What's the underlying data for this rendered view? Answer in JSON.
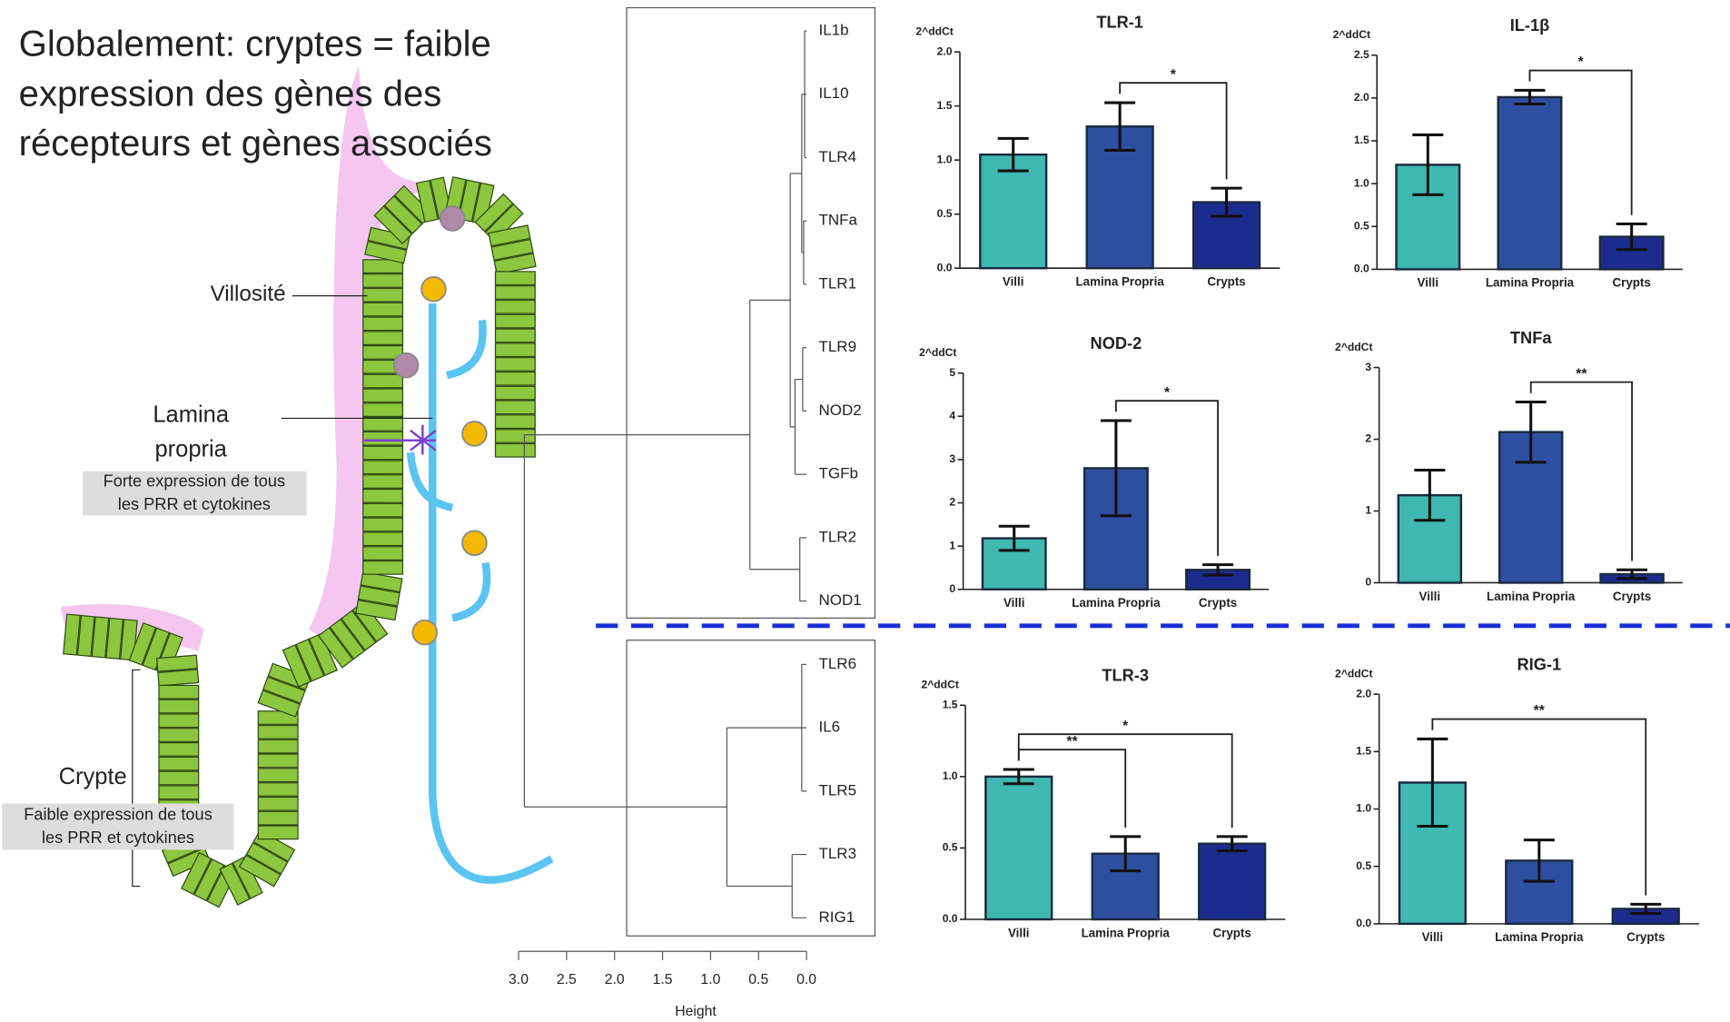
{
  "headline": [
    "Globalement: cryptes = faible",
    "expression des gènes  des",
    "récepteurs et gènes associés"
  ],
  "diagram": {
    "villus": "Villosité",
    "lamina": [
      "Lamina",
      "propria"
    ],
    "lamina_note": [
      "Forte expression de tous",
      "les PRR et cytokines"
    ],
    "crypt": "Crypte",
    "crypt_note": [
      "Faible expression de tous",
      "les PRR et cytokines"
    ]
  },
  "dendrogram": {
    "xlabel": "Height",
    "xlim": [
      3.0,
      0.0
    ],
    "xticks": [
      {
        "value": 3.0,
        "label": "3.0"
      },
      2.5,
      {
        "value": 2.0,
        "label": "2.0"
      },
      1.5,
      {
        "value": 1.0,
        "label": "1.0"
      },
      0.5,
      {
        "value": 0.0,
        "label": "0.0"
      }
    ],
    "tree": {
      "height": 2.94,
      "children": [
        {
          "height": 0.59,
          "children": [
            {
              "height": 0.17,
              "children": [
                {
                  "height": 0.05,
                  "children": [
                    {
                      "height": 0.02,
                      "children": [
                        "IL1b",
                        "IL10",
                        "TLR4"
                      ]
                    },
                    {
                      "height": 0.03,
                      "children": [
                        "TNFa",
                        "TLR1"
                      ]
                    }
                  ]
                },
                {
                  "height": 0.12,
                  "children": [
                    {
                      "height": 0.04,
                      "children": [
                        "TLR9",
                        "NOD2"
                      ]
                    },
                    "TGFb"
                  ]
                }
              ]
            },
            {
              "height": 0.07,
              "children": [
                "TLR2",
                "NOD1"
              ]
            }
          ]
        },
        {
          "height": 0.83,
          "children": [
            {
              "height": 0.05,
              "children": [
                "TLR6",
                "IL6",
                "TLR5"
              ]
            },
            {
              "height": 0.15,
              "children": [
                "TLR3",
                "RIG1"
              ]
            }
          ]
        }
      ]
    }
  },
  "chart_data": [
    {
      "type": "bar",
      "title": "TLR-1",
      "ylabel": "2^ddCt",
      "categories": [
        "Villi",
        "Lamina Propria",
        "Crypts"
      ],
      "values": [
        1.05,
        1.31,
        0.61
      ],
      "errors": [
        0.15,
        0.22,
        0.13
      ],
      "colors": [
        "#3fb8b0",
        "#2e4fa0",
        "#1c2c8e"
      ],
      "ylim": [
        0,
        2.0
      ],
      "yticks": [
        {
          "value": 0,
          "label": "0.0"
        },
        0.5,
        {
          "value": 1,
          "label": "1.0"
        },
        1.5,
        {
          "value": 2,
          "label": "2.0"
        }
      ],
      "comparisons": [
        {
          "label": "*",
          "groups": [
            "Lamina Propria",
            "Crypts"
          ]
        }
      ]
    },
    {
      "type": "bar",
      "title": "IL-1β",
      "ylabel": "2^ddCt",
      "categories": [
        "Villi",
        "Lamina Propria",
        "Crypts"
      ],
      "values": [
        1.22,
        2.01,
        0.38
      ],
      "errors": [
        0.35,
        0.08,
        0.15
      ],
      "colors": [
        "#3fb8b0",
        "#2e4fa0",
        "#1c2c8e"
      ],
      "ylim": [
        0,
        2.5
      ],
      "yticks": [
        {
          "value": 0,
          "label": "0.0"
        },
        0.5,
        {
          "value": 1,
          "label": "1.0"
        },
        1.5,
        {
          "value": 2,
          "label": "2.0"
        },
        2.5
      ],
      "comparisons": [
        {
          "label": "*",
          "groups": [
            "Lamina Propria",
            "Crypts"
          ]
        }
      ]
    },
    {
      "type": "bar",
      "title": "NOD-2",
      "ylabel": "2^ddCt",
      "categories": [
        "Villi",
        "Lamina Propria",
        "Crypts"
      ],
      "values": [
        1.18,
        2.8,
        0.45
      ],
      "errors": [
        0.28,
        1.1,
        0.12
      ],
      "colors": [
        "#3fb8b0",
        "#2e4fa0",
        "#1c2c8e"
      ],
      "ylim": [
        0,
        5
      ],
      "yticks": [
        0,
        1,
        2,
        3,
        4,
        5
      ],
      "comparisons": [
        {
          "label": "*",
          "groups": [
            "Lamina Propria",
            "Crypts"
          ]
        }
      ]
    },
    {
      "type": "bar",
      "title": "TNFa",
      "ylabel": "2^ddCt",
      "categories": [
        "Villi",
        "Lamina Propria",
        "Crypts"
      ],
      "values": [
        1.22,
        2.1,
        0.12
      ],
      "errors": [
        0.35,
        0.42,
        0.06
      ],
      "colors": [
        "#3fb8b0",
        "#2e4fa0",
        "#1c2c8e"
      ],
      "ylim": [
        0,
        3
      ],
      "yticks": [
        0,
        1,
        2,
        3
      ],
      "comparisons": [
        {
          "label": "**",
          "groups": [
            "Lamina Propria",
            "Crypts"
          ]
        }
      ]
    },
    {
      "type": "bar",
      "title": "TLR-3",
      "ylabel": "2^ddCt",
      "categories": [
        "Villi",
        "Lamina Propria",
        "Crypts"
      ],
      "values": [
        1.0,
        0.46,
        0.53
      ],
      "errors": [
        0.05,
        0.12,
        0.05
      ],
      "colors": [
        "#3fb8b0",
        "#2e4fa0",
        "#1c2c8e"
      ],
      "ylim": [
        0,
        1.5
      ],
      "yticks": [
        {
          "value": 0,
          "label": "0.0"
        },
        0.5,
        {
          "value": 1,
          "label": "1.0"
        },
        1.5
      ],
      "comparisons": [
        {
          "label": "**",
          "groups": [
            "Villi",
            "Lamina Propria"
          ]
        },
        {
          "label": "*",
          "groups": [
            "Villi",
            "Crypts"
          ]
        }
      ]
    },
    {
      "type": "bar",
      "title": "RIG-1",
      "ylabel": "2^ddCt",
      "categories": [
        "Villi",
        "Lamina Propria",
        "Crypts"
      ],
      "values": [
        1.23,
        0.55,
        0.13
      ],
      "errors": [
        0.38,
        0.18,
        0.04
      ],
      "colors": [
        "#3fb8b0",
        "#2e4fa0",
        "#1c2c8e"
      ],
      "ylim": [
        0,
        2.0
      ],
      "yticks": [
        {
          "value": 0,
          "label": "0.0"
        },
        0.5,
        {
          "value": 1,
          "label": "1.0"
        },
        1.5,
        {
          "value": 2,
          "label": "2.0"
        }
      ],
      "comparisons": [
        {
          "label": "**",
          "groups": [
            "Villi",
            "Crypts"
          ]
        }
      ]
    }
  ]
}
